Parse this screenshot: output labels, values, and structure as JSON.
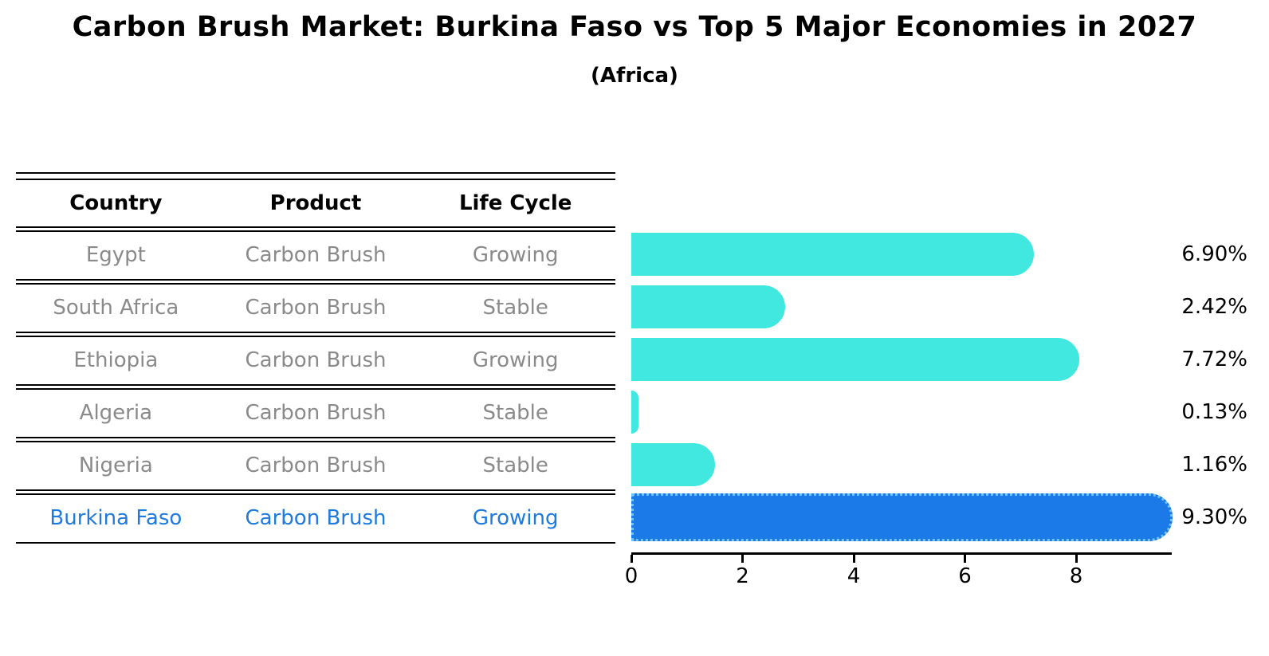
{
  "title": "Carbon Brush Market: Burkina Faso vs Top 5 Major Economies in 2027",
  "subtitle": "(Africa)",
  "table": {
    "headers": [
      "Country",
      "Product",
      "Life Cycle"
    ]
  },
  "colors": {
    "bar": "#40E8E0",
    "bar_highlight": "#1B7AE8",
    "bar_highlight_border": "#70C3F4",
    "row_text": "#8A8A8A",
    "highlight_text": "#1E7ADF",
    "axis_text": "#000000"
  },
  "chart_data": {
    "type": "bar",
    "orientation": "horizontal",
    "title": "Carbon Brush Market: Burkina Faso vs Top 5 Major Economies in 2027",
    "subtitle": "(Africa)",
    "categories": [
      "Egypt",
      "South Africa",
      "Ethiopia",
      "Algeria",
      "Nigeria",
      "Burkina Faso"
    ],
    "values": [
      6.9,
      2.42,
      7.72,
      0.13,
      1.16,
      9.3
    ],
    "value_labels": [
      "6.90%",
      "2.42%",
      "7.72%",
      "0.13%",
      "1.16%",
      "9.30%"
    ],
    "xticks": [
      "0",
      "2",
      "4",
      "6",
      "8"
    ],
    "xlim": [
      0,
      9.7
    ],
    "grid": false,
    "legend": false,
    "highlight_category": "Burkina Faso",
    "rows": [
      {
        "country": "Egypt",
        "product": "Carbon Brush",
        "life_cycle": "Growing",
        "value": 6.9,
        "label": "6.90%",
        "highlight": false
      },
      {
        "country": "South Africa",
        "product": "Carbon Brush",
        "life_cycle": "Stable",
        "value": 2.42,
        "label": "2.42%",
        "highlight": false
      },
      {
        "country": "Ethiopia",
        "product": "Carbon Brush",
        "life_cycle": "Growing",
        "value": 7.72,
        "label": "7.72%",
        "highlight": false
      },
      {
        "country": "Algeria",
        "product": "Carbon Brush",
        "life_cycle": "Stable",
        "value": 0.13,
        "label": "0.13%",
        "highlight": false
      },
      {
        "country": "Nigeria",
        "product": "Carbon Brush",
        "life_cycle": "Stable",
        "value": 1.16,
        "label": "1.16%",
        "highlight": false
      },
      {
        "country": "Burkina Faso",
        "product": "Carbon Brush",
        "life_cycle": "Growing",
        "value": 9.3,
        "label": "9.30%",
        "highlight": true
      }
    ]
  }
}
